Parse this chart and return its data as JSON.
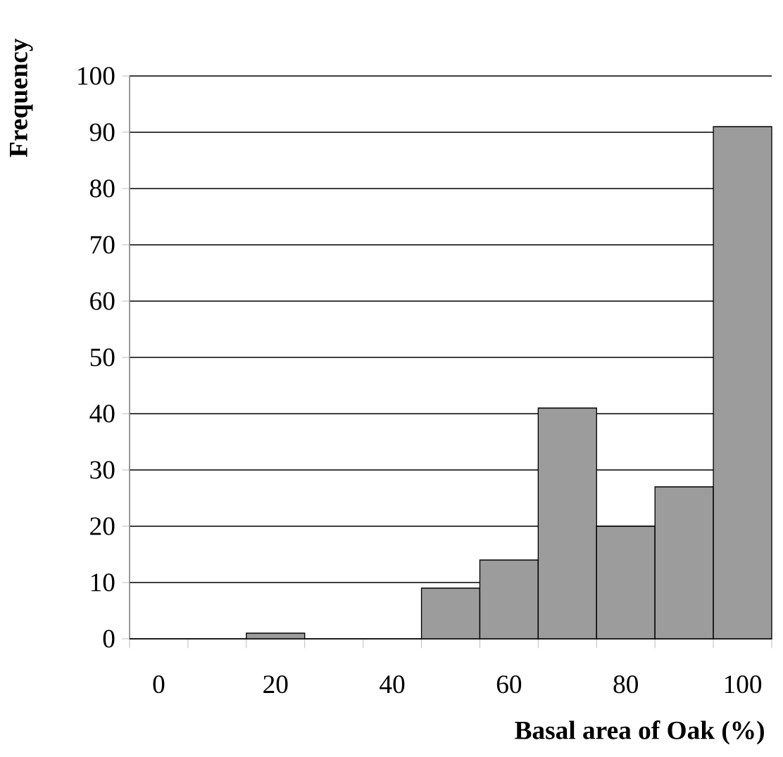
{
  "chart_data": {
    "type": "bar",
    "xlabel": "Basal area of Oak (%)",
    "ylabel": "Frequency",
    "categories": [
      "0",
      null,
      "20",
      null,
      "40",
      null,
      "60",
      null,
      "80",
      null,
      "100"
    ],
    "values": [
      0,
      0,
      1,
      0,
      0,
      9,
      14,
      41,
      20,
      27,
      91
    ],
    "color": "#9c9c9c",
    "ylim": [
      0,
      100
    ],
    "yticks": [
      0,
      10,
      20,
      30,
      40,
      50,
      60,
      70,
      80,
      90,
      100
    ],
    "grid": "y"
  }
}
